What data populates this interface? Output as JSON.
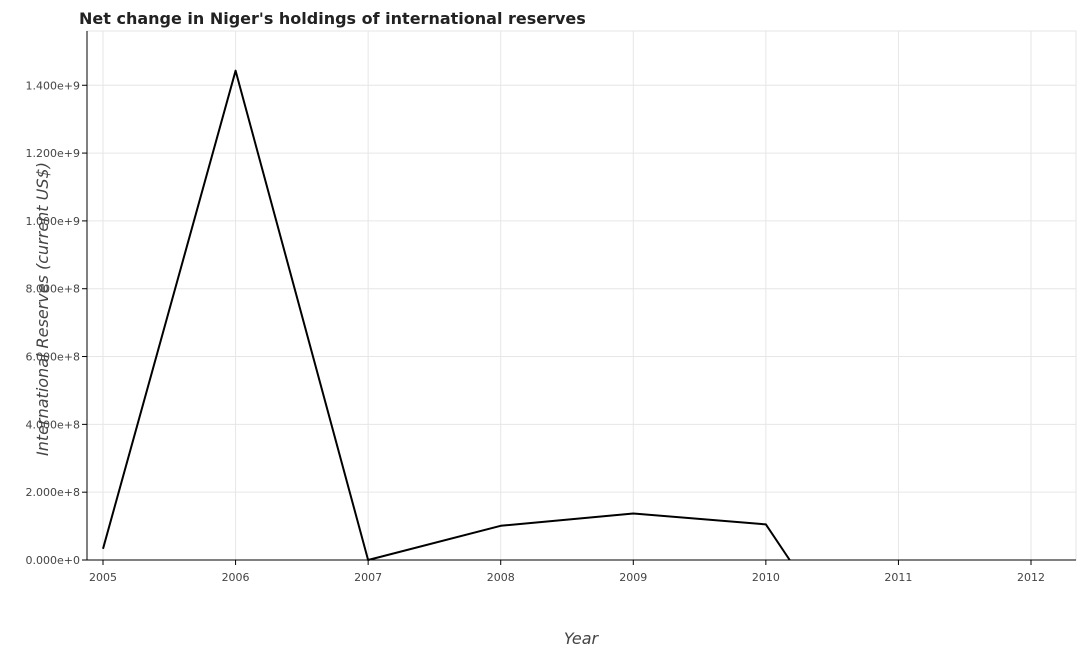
{
  "chart_data": {
    "type": "line",
    "title": "Net change in Niger's holdings of international reserves",
    "xlabel": "Year",
    "ylabel": "International Reserves (current US$)",
    "categories": [
      "2005",
      "2006",
      "2007",
      "2008",
      "2009",
      "2010",
      "2011",
      "2012"
    ],
    "x_tick_labels": [
      "2005",
      "2006",
      "2007",
      "2008",
      "2009",
      "2010",
      "2011",
      "2012"
    ],
    "y_tick_labels": [
      "0.000e+0",
      "2.000e+8",
      "4.000e+8",
      "6.000e+8",
      "8.000e+8",
      "1.000e+9",
      "1.200e+9",
      "1.400e+9"
    ],
    "y_tick_values": [
      0,
      200000000,
      400000000,
      600000000,
      800000000,
      1000000000,
      1200000000,
      1400000000
    ],
    "ylim": [
      0,
      1560000000
    ],
    "grid": true,
    "series": [
      {
        "values": [
          33000000,
          1443000000,
          0,
          101000000,
          137000000,
          105000000,
          0,
          0
        ],
        "color": "#000000"
      }
    ]
  }
}
